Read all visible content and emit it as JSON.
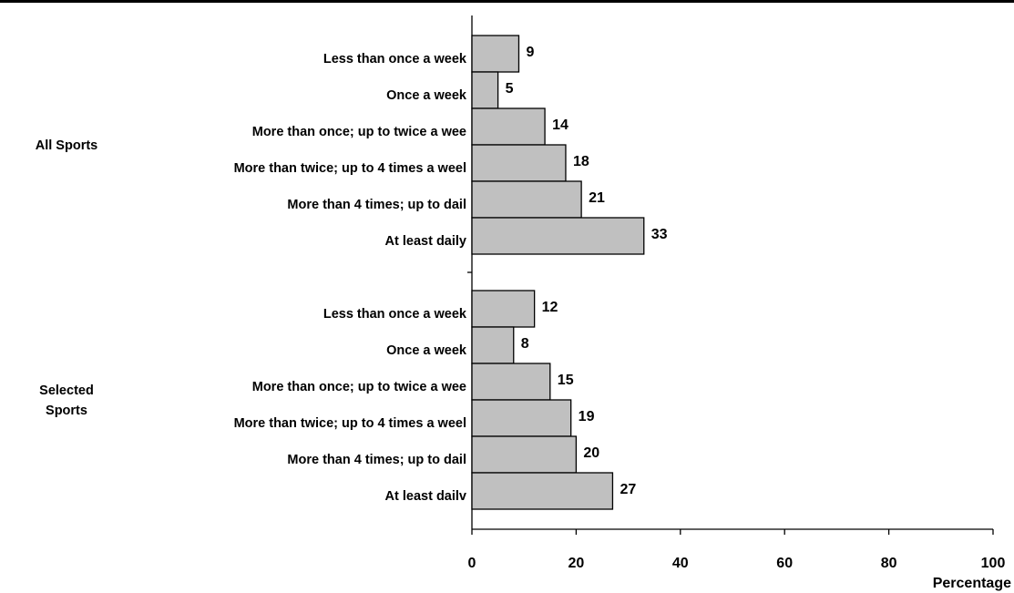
{
  "chart_data": {
    "type": "bar",
    "orientation": "horizontal",
    "xlabel": "Percentage",
    "xlim": [
      0,
      100
    ],
    "xticks": [
      0,
      20,
      40,
      60,
      80,
      100
    ],
    "bar_color": "#c0c0c0",
    "groups": [
      {
        "name": "All Sports",
        "categories": [
          "Less than once a week",
          "Once a week",
          "More than once; up to twice a wee",
          "More than twice; up to 4 times a weel",
          "More than 4 times; up to dail",
          "At least daily"
        ],
        "values": [
          9,
          5,
          14,
          18,
          21,
          33
        ]
      },
      {
        "name": "Selected Sports",
        "categories": [
          "Less than once a week",
          "Once a week",
          "More than once; up to twice a wee",
          "More than twice; up to 4 times a weel",
          "More than 4 times; up to dail",
          "At least dailv"
        ],
        "values": [
          12,
          8,
          15,
          19,
          20,
          27
        ]
      }
    ]
  }
}
